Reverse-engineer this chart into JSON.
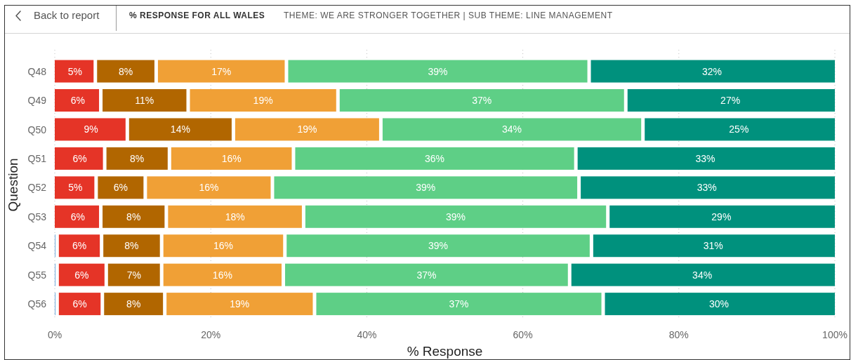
{
  "chart_data": {
    "type": "bar",
    "orientation": "horizontal",
    "stacked": true,
    "title": "% RESPONSE FOR ALL WALES",
    "subtitle": "THEME: WE ARE STRONGER TOGETHER | SUB THEME: LINE MANAGEMENT",
    "annotations": [
      "Back to report"
    ],
    "xlabel": "% Response",
    "ylabel": "Question",
    "categories": [
      "Q48",
      "Q49",
      "Q50",
      "Q51",
      "Q52",
      "Q53",
      "Q54",
      "Q55",
      "Q56"
    ],
    "series": [
      {
        "color": "#5b9bd5",
        "values": [
          null,
          null,
          null,
          null,
          null,
          null,
          0.3,
          0.3,
          0.3
        ]
      },
      {
        "color": "#e53427",
        "values": [
          5.2,
          5.9,
          9.3,
          6.4,
          5.3,
          5.9,
          5.7,
          6.3,
          5.8
        ],
        "value_labels": [
          "5%",
          "6%",
          "9%",
          "6%",
          "5%",
          "6%",
          "6%",
          "6%",
          "6%"
        ]
      },
      {
        "color": "#b16600",
        "values": [
          7.8,
          11.2,
          13.6,
          8.3,
          6.3,
          8.4,
          7.7,
          7.1,
          8.0
        ],
        "value_labels": [
          "8%",
          "11%",
          "14%",
          "8%",
          "6%",
          "8%",
          "8%",
          "7%",
          "8%"
        ]
      },
      {
        "color": "#f0a036",
        "values": [
          16.7,
          19.2,
          18.9,
          15.9,
          16.3,
          17.6,
          15.8,
          15.6,
          19.2
        ],
        "value_labels": [
          "17%",
          "19%",
          "19%",
          "16%",
          "16%",
          "18%",
          "16%",
          "16%",
          "19%"
        ]
      },
      {
        "color": "#5ecf86",
        "values": [
          38.8,
          36.9,
          33.6,
          36.2,
          39.3,
          39.0,
          39.3,
          36.7,
          37.0
        ],
        "value_labels": [
          "39%",
          "37%",
          "34%",
          "36%",
          "39%",
          "39%",
          "39%",
          "37%",
          "37%"
        ]
      },
      {
        "color": "#00917d",
        "values": [
          31.5,
          26.8,
          24.6,
          33.2,
          32.8,
          29.1,
          31.2,
          34.0,
          29.7
        ],
        "value_labels": [
          "32%",
          "27%",
          "25%",
          "33%",
          "33%",
          "29%",
          "31%",
          "34%",
          "30%"
        ]
      }
    ],
    "xlim": [
      0,
      100
    ],
    "xticks": [
      {
        "value": 0,
        "label": "0%"
      },
      {
        "value": 20,
        "label": "20%"
      },
      {
        "value": 40,
        "label": "40%"
      },
      {
        "value": 60,
        "label": "60%"
      },
      {
        "value": 80,
        "label": "80%"
      },
      {
        "value": 100,
        "label": "100%"
      }
    ],
    "grid": "x"
  }
}
